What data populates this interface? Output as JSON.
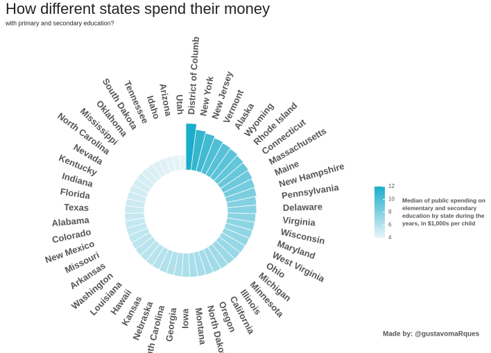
{
  "chart_data": {
    "type": "radial-bar",
    "title": "How different states spend their money",
    "subtitle": "with primary and secondary education?",
    "categories": [
      "District of Columb",
      "New York",
      "New Jersey",
      "Vermont",
      "Alaska",
      "Wyoming",
      "Rhode Island",
      "Connecticut",
      "Massachusetts",
      "Maine",
      "New Hampshire",
      "Pennsylvania",
      "Delaware",
      "Virginia",
      "Wisconsin",
      "Maryland",
      "West Virginia",
      "Ohio",
      "Michigan",
      "Minnesota",
      "Illinois",
      "California",
      "Oregon",
      "North Dakota",
      "Montana",
      "Iowa",
      "Georgia",
      "South Carolina",
      "Nebraska",
      "Kansas",
      "Hawaii",
      "Louisiana",
      "Washington",
      "Arkansas",
      "Missouri",
      "New Mexico",
      "Colorado",
      "Alabama",
      "Texas",
      "Florida",
      "Indiana",
      "Kentucky",
      "Nevada",
      "North Carolina",
      "Mississippi",
      "Oklahoma",
      "South Dakota",
      "Tennessee",
      "Idaho",
      "Arizona",
      "Utah"
    ],
    "values": [
      12.5,
      11.0,
      10.5,
      10.0,
      9.7,
      9.5,
      9.2,
      9.0,
      8.8,
      8.5,
      8.3,
      7.9,
      7.8,
      7.6,
      7.5,
      7.4,
      7.3,
      7.2,
      7.1,
      7.0,
      6.9,
      6.8,
      6.7,
      6.6,
      6.5,
      6.4,
      6.3,
      6.2,
      6.1,
      6.0,
      5.9,
      5.85,
      5.8,
      5.7,
      5.6,
      5.5,
      5.4,
      5.3,
      5.2,
      5.1,
      5.0,
      4.9,
      4.8,
      4.7,
      4.6,
      4.5,
      4.4,
      4.3,
      4.2,
      4.1,
      4.0
    ],
    "ylim": [
      0,
      13
    ],
    "color_range": [
      "#e8f4f8",
      "#1badc9"
    ],
    "colorlim": [
      4,
      12
    ],
    "legend_title": "Median of public spending on elementary and secondary education by state during the years, in $1,000s per child",
    "legend_ticks": [
      4,
      6,
      8,
      10,
      12
    ],
    "caption": "Made by: @gustavomaRques"
  }
}
